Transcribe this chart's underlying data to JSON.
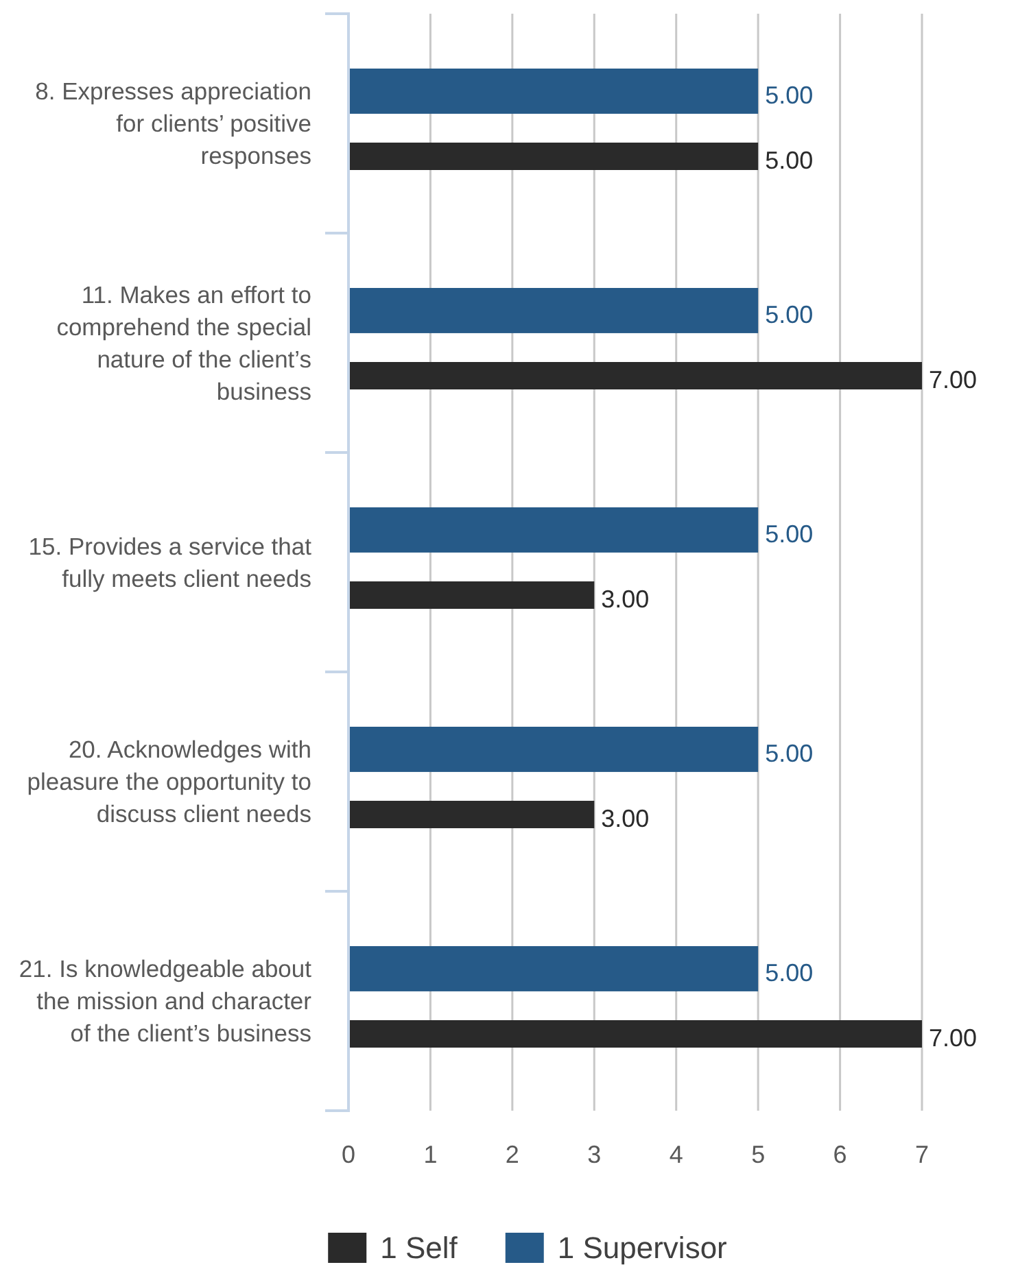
{
  "chart_data": {
    "type": "bar",
    "orientation": "horizontal",
    "categories": [
      "8. Expresses appreciation\nfor clients’ positive\nresponses",
      "11. Makes an effort to\ncomprehend the special\nnature of the client’s\nbusiness",
      "15. Provides a service that\nfully meets client needs",
      "20. Acknowledges with\npleasure the opportunity to\ndiscuss client needs",
      "21. Is knowledgeable about\nthe mission and character\nof the client’s business"
    ],
    "series": [
      {
        "name": "1 Self",
        "color": "#2a2a2a",
        "values": [
          5,
          7,
          3,
          3,
          7
        ],
        "value_labels": [
          "5.00",
          "7.00",
          "3.00",
          "3.00",
          "7.00"
        ]
      },
      {
        "name": "1 Supervisor",
        "color": "#265a88",
        "values": [
          5,
          5,
          5,
          5,
          5
        ],
        "value_labels": [
          "5.00",
          "5.00",
          "5.00",
          "5.00",
          "5.00"
        ]
      }
    ],
    "xlim": [
      0,
      7
    ],
    "xticks": [
      0,
      1,
      2,
      3,
      4,
      5,
      6,
      7
    ],
    "grid": "x",
    "legend": "bottom"
  }
}
